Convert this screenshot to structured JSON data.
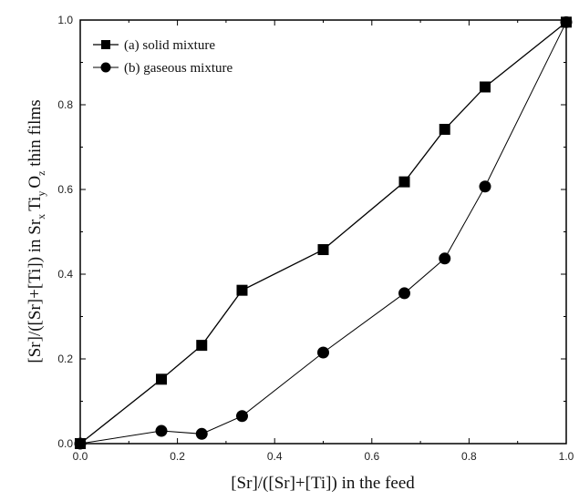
{
  "chart_data": {
    "type": "line",
    "title": "",
    "xlabel": "[Sr]/([Sr]+[Ti]) in the feed",
    "ylabel": {
      "prefix": "[Sr]/([Sr]+[Ti]) in Sr",
      "sub_x": "x",
      "ti": "Ti",
      "sub_y": "y",
      "o": "O",
      "sub_z": "z",
      "suffix": " thin films"
    },
    "xlim": [
      0.0,
      1.0
    ],
    "ylim": [
      0.0,
      1.0
    ],
    "x_ticks": [
      "0.0",
      "0.2",
      "0.4",
      "0.6",
      "0.8",
      "1.0"
    ],
    "y_ticks": [
      "0.0",
      "0.2",
      "0.4",
      "0.6",
      "0.8",
      "1.0"
    ],
    "grid": false,
    "legend_position": "top-left",
    "series": [
      {
        "name": "(a) solid mixture",
        "marker": "square",
        "color": "#000000",
        "x": [
          0.0,
          0.167,
          0.25,
          0.333,
          0.5,
          0.667,
          0.75,
          0.833,
          1.0
        ],
        "y": [
          0.0,
          0.152,
          0.232,
          0.362,
          0.458,
          0.618,
          0.742,
          0.842,
          0.995
        ]
      },
      {
        "name": "(b) gaseous mixture",
        "marker": "circle",
        "color": "#000000",
        "x": [
          0.0,
          0.167,
          0.25,
          0.333,
          0.5,
          0.667,
          0.75,
          0.833,
          1.0
        ],
        "y": [
          0.0,
          0.03,
          0.023,
          0.065,
          0.215,
          0.355,
          0.437,
          0.607,
          0.995
        ]
      }
    ]
  }
}
